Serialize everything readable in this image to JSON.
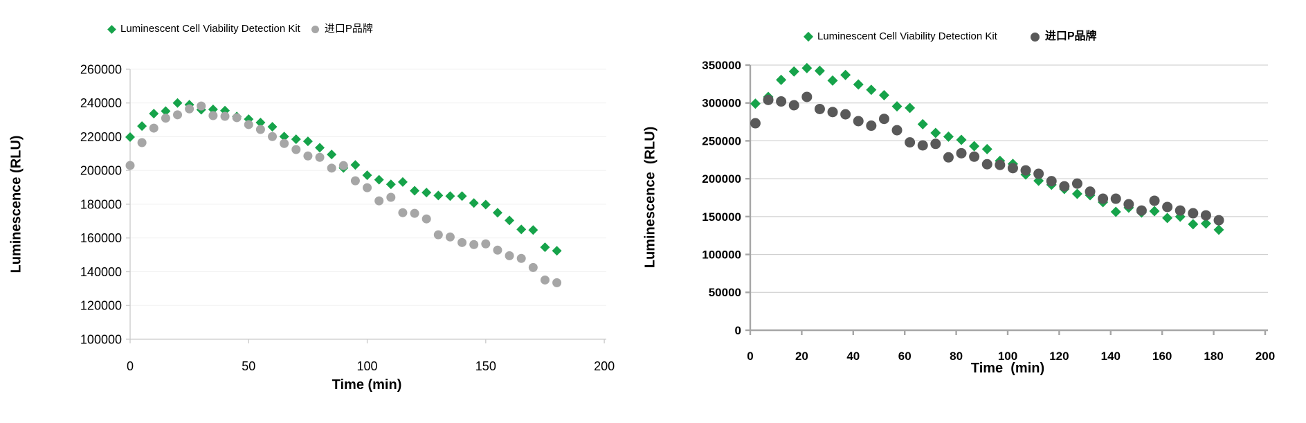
{
  "figure": {
    "background": "#FFFFFF"
  },
  "chart_data": [
    {
      "id": "low-range-comparison",
      "type": "scatter",
      "title": "",
      "xlabel": "Time (min)",
      "ylabel": "Luminescence (RLU)",
      "xlim": [
        0,
        200
      ],
      "ylim": [
        100000,
        260000
      ],
      "xticks": [
        0,
        50,
        100,
        150,
        200
      ],
      "yticks": [
        100000,
        120000,
        140000,
        160000,
        180000,
        200000,
        220000,
        240000,
        260000
      ],
      "grid": true,
      "legend_position": "top",
      "x": [
        0,
        5,
        10,
        15,
        20,
        25,
        30,
        35,
        40,
        45,
        50,
        55,
        60,
        65,
        70,
        75,
        80,
        85,
        90,
        95,
        100,
        105,
        110,
        115,
        120,
        125,
        130,
        135,
        140,
        145,
        150,
        155,
        160,
        165,
        170,
        175,
        180
      ],
      "series": [
        {
          "name": "Luminescent Cell Viability Detection Kit",
          "marker": "diamond",
          "color": "#16A34A",
          "values": [
            219800,
            226300,
            233700,
            235200,
            240000,
            239000,
            236000,
            236200,
            235500,
            232000,
            230400,
            228400,
            225900,
            220100,
            218500,
            217300,
            213500,
            209500,
            201500,
            203300,
            197200,
            194500,
            191800,
            193200,
            188000,
            186900,
            185200,
            184800,
            184800,
            180700,
            179800,
            175000,
            170400,
            165100,
            164700,
            154500,
            152400
          ]
        },
        {
          "name": "进口P品牌",
          "marker": "circle",
          "color": "#A6A6A6",
          "values": [
            203000,
            216500,
            225100,
            231000,
            233000,
            236500,
            238200,
            232500,
            232100,
            231300,
            227200,
            224300,
            220100,
            216000,
            212400,
            208600,
            207800,
            201400,
            202900,
            193900,
            189800,
            182000,
            184100,
            175000,
            174600,
            171300,
            161900,
            160600,
            157300,
            156100,
            156500,
            152800,
            149500,
            147900,
            142500,
            135100,
            133500
          ]
        }
      ]
    },
    {
      "id": "high-range-comparison",
      "type": "scatter",
      "title": "",
      "xlabel": "Time  (min)",
      "ylabel": "Luminescence  (RLU)",
      "xlim": [
        0,
        200
      ],
      "ylim": [
        0,
        350000
      ],
      "xticks": [
        0,
        20,
        40,
        60,
        80,
        100,
        120,
        140,
        160,
        180,
        200
      ],
      "yticks": [
        0,
        50000,
        100000,
        150000,
        200000,
        250000,
        300000,
        350000
      ],
      "grid": true,
      "legend_position": "top",
      "x": [
        2,
        7,
        12,
        17,
        22,
        27,
        32,
        37,
        42,
        47,
        52,
        57,
        62,
        67,
        72,
        77,
        82,
        87,
        92,
        97,
        102,
        107,
        112,
        117,
        122,
        127,
        132,
        137,
        142,
        147,
        152,
        157,
        162,
        167,
        172,
        177,
        182
      ],
      "series": [
        {
          "name": "Luminescent Cell Viability Detection Kit",
          "marker": "diamond",
          "color": "#16A34A",
          "values": [
            299000,
            308000,
            330500,
            341500,
            346000,
            342500,
            329500,
            337000,
            324400,
            317300,
            310300,
            295500,
            293500,
            272000,
            260500,
            255500,
            251300,
            243000,
            239100,
            223600,
            219500,
            205500,
            197300,
            192000,
            186400,
            180000,
            178200,
            169100,
            156300,
            161800,
            155400,
            157200,
            148100,
            149900,
            139900,
            140800,
            132600
          ]
        },
        {
          "name": "进口P品牌",
          "marker": "circle",
          "color": "#595959",
          "values": [
            273200,
            304000,
            302000,
            297000,
            308000,
            292000,
            288000,
            285000,
            276000,
            270000,
            279000,
            264000,
            248000,
            244000,
            246000,
            228200,
            233600,
            229100,
            219100,
            218200,
            214000,
            211000,
            206500,
            196800,
            190000,
            193600,
            183000,
            173600,
            173600,
            166300,
            158000,
            170900,
            162700,
            158000,
            154400,
            151600,
            145200
          ]
        }
      ]
    }
  ]
}
